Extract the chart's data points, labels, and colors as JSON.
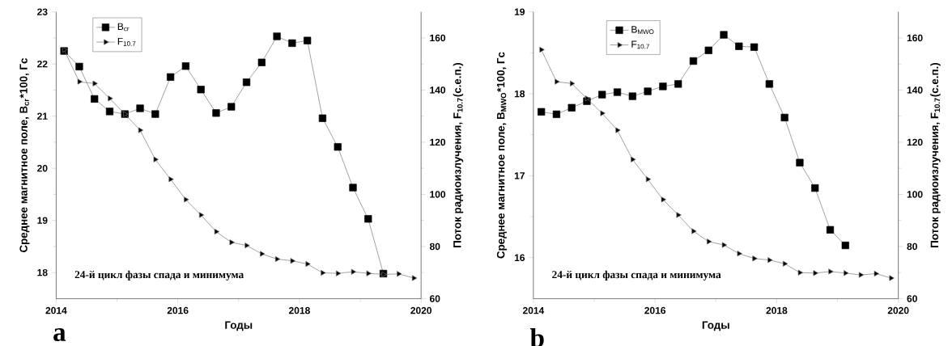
{
  "chart_data": [
    {
      "type": "line",
      "xlabel": "Годы",
      "ylabel": "Среднее магнитное поле, B$_{cr}$*100, Гс",
      "y2label": "Поток радиоизлучения, F$_{10.7}$(с.е.п.)",
      "xlim": [
        2014,
        2020
      ],
      "xticks": [
        2014,
        2016,
        2018,
        2020
      ],
      "ylim": [
        17.5,
        23
      ],
      "yticks": [
        18,
        19,
        20,
        21,
        22,
        23
      ],
      "y2lim": [
        60,
        170
      ],
      "y2ticks": [
        60,
        80,
        100,
        120,
        140,
        160
      ],
      "legend": "top left",
      "annotations": [
        "24-й цикл фазы спада и минимума",
        "a"
      ],
      "series": [
        {
          "name": "B$_{cr}$",
          "color": "#000000",
          "marker": "square",
          "x": [
            2014.13,
            2014.38,
            2014.63,
            2014.88,
            2015.13,
            2015.38,
            2015.63,
            2015.88,
            2016.13,
            2016.38,
            2016.63,
            2016.88,
            2017.13,
            2017.38,
            2017.63,
            2017.88,
            2018.13,
            2018.38,
            2018.63,
            2018.88,
            2019.13,
            2019.38
          ],
          "values": [
            22.25,
            21.95,
            21.33,
            21.09,
            21.04,
            21.15,
            21.04,
            21.75,
            21.96,
            21.51,
            21.06,
            21.18,
            21.65,
            22.03,
            22.53,
            22.4,
            22.45,
            20.96,
            20.41,
            19.63,
            19.03,
            17.98
          ]
        },
        {
          "name": "F$_{10.7}$",
          "color": "#000000",
          "marker": "triangle",
          "axis": "y2",
          "x": [
            2014.13,
            2014.38,
            2014.63,
            2014.88,
            2015.13,
            2015.38,
            2015.63,
            2015.88,
            2016.13,
            2016.38,
            2016.63,
            2016.88,
            2017.13,
            2017.38,
            2017.63,
            2017.88,
            2018.13,
            2018.38,
            2018.63,
            2018.88,
            2019.13,
            2019.38,
            2019.63,
            2019.88
          ],
          "values": [
            155.5,
            143.2,
            142.5,
            136.8,
            130.8,
            124.6,
            113.4,
            105.8,
            98.0,
            92.1,
            85.7,
            81.6,
            80.4,
            77.2,
            75.2,
            74.5,
            73.3,
            69.9,
            69.7,
            70.3,
            69.7,
            69.3,
            69.5,
            67.9
          ]
        }
      ]
    },
    {
      "type": "line",
      "xlabel": "Годы",
      "ylabel": "Среднее магнитное поле, B$_{MWO}$*100, Гс",
      "y2label": "Поток радиоизлучения, F$_{10.7}$(с.е.п.)",
      "xlim": [
        2014,
        2020
      ],
      "xticks": [
        2014,
        2016,
        2018,
        2020
      ],
      "ylim": [
        15.5,
        19
      ],
      "yticks": [
        16,
        17,
        18,
        19
      ],
      "y2lim": [
        60,
        170
      ],
      "y2ticks": [
        60,
        80,
        100,
        120,
        140,
        160
      ],
      "legend": "top",
      "annotations": [
        "24-й цикл фазы спада и минимума",
        "b"
      ],
      "series": [
        {
          "name": "B$_{MWO}$",
          "color": "#000000",
          "marker": "square",
          "x": [
            2014.13,
            2014.38,
            2014.63,
            2014.88,
            2015.13,
            2015.38,
            2015.63,
            2015.88,
            2016.13,
            2016.38,
            2016.63,
            2016.88,
            2017.13,
            2017.38,
            2017.63,
            2017.88,
            2018.13,
            2018.38,
            2018.63,
            2018.88,
            2019.13
          ],
          "values": [
            17.78,
            17.75,
            17.83,
            17.91,
            17.99,
            18.02,
            17.97,
            18.03,
            18.09,
            18.12,
            18.4,
            18.53,
            18.72,
            18.58,
            18.57,
            18.12,
            17.71,
            17.16,
            16.85,
            16.34,
            16.15
          ]
        },
        {
          "name": "F$_{10.7}$",
          "color": "#000000",
          "marker": "triangle",
          "axis": "y2",
          "x": [
            2014.13,
            2014.38,
            2014.63,
            2014.88,
            2015.13,
            2015.38,
            2015.63,
            2015.88,
            2016.13,
            2016.38,
            2016.63,
            2016.88,
            2017.13,
            2017.38,
            2017.63,
            2017.88,
            2018.13,
            2018.38,
            2018.63,
            2018.88,
            2019.13,
            2019.38,
            2019.63,
            2019.88
          ],
          "values": [
            155.5,
            143.2,
            142.5,
            136.8,
            131.1,
            124.6,
            113.4,
            105.8,
            98.0,
            92.1,
            85.9,
            81.9,
            80.6,
            77.3,
            75.4,
            74.8,
            73.4,
            70.0,
            69.8,
            70.4,
            69.8,
            69.1,
            69.6,
            67.9
          ]
        }
      ]
    }
  ]
}
